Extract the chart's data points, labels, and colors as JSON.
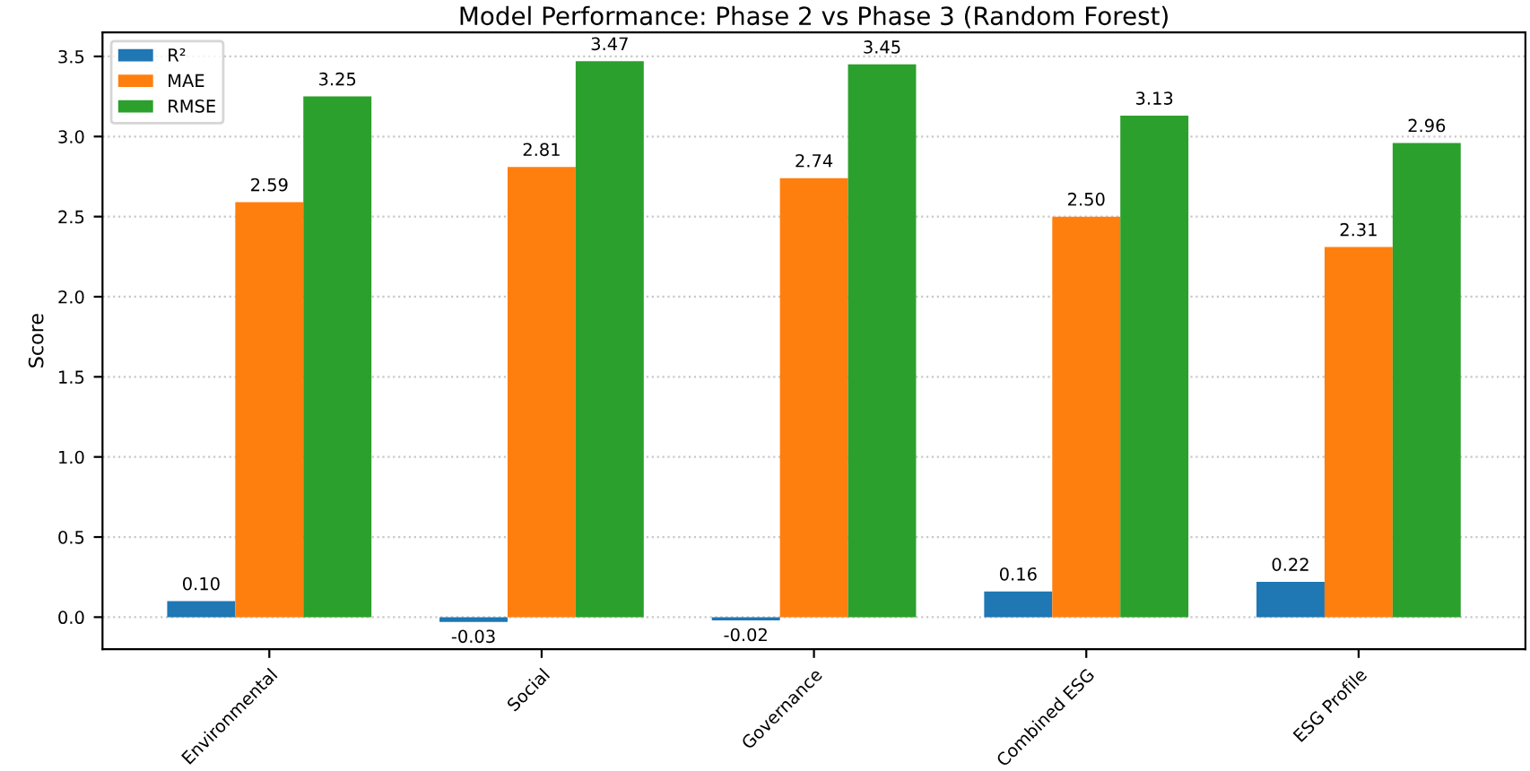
{
  "chart_data": {
    "type": "bar",
    "title": "Model Performance: Phase 2 vs Phase 3 (Random Forest)",
    "ylabel": "Score",
    "categories": [
      "Environmental",
      "Social",
      "Governance",
      "Combined ESG",
      "ESG Profile"
    ],
    "series": [
      {
        "name": "R²",
        "color": "#1f77b4",
        "values": [
          0.1,
          -0.03,
          -0.02,
          0.16,
          0.22
        ],
        "value_labels": [
          "0.10",
          "-0.03",
          "-0.02",
          "0.16",
          "0.22"
        ]
      },
      {
        "name": "MAE",
        "color": "#ff7f0e",
        "values": [
          2.59,
          2.81,
          2.74,
          2.5,
          2.31
        ],
        "value_labels": [
          "2.59",
          "2.81",
          "2.74",
          "2.50",
          "2.31"
        ]
      },
      {
        "name": "RMSE",
        "color": "#2ca02c",
        "values": [
          3.25,
          3.47,
          3.45,
          3.13,
          2.96
        ],
        "value_labels": [
          "3.25",
          "3.47",
          "3.45",
          "3.13",
          "2.96"
        ]
      }
    ],
    "ylim": [
      -0.2,
      3.65
    ],
    "yticks": [
      {
        "value": 0,
        "label": "0.0"
      },
      {
        "value": 0.5,
        "label": "0.5"
      },
      {
        "value": 1,
        "label": "1.0"
      },
      {
        "value": 1.5,
        "label": "1.5"
      },
      {
        "value": 2,
        "label": "2.0"
      },
      {
        "value": 2.5,
        "label": "2.5"
      },
      {
        "value": 3,
        "label": "3.0"
      },
      {
        "value": 3.5,
        "label": "3.5"
      }
    ],
    "grid": "y",
    "legend": "top left"
  }
}
